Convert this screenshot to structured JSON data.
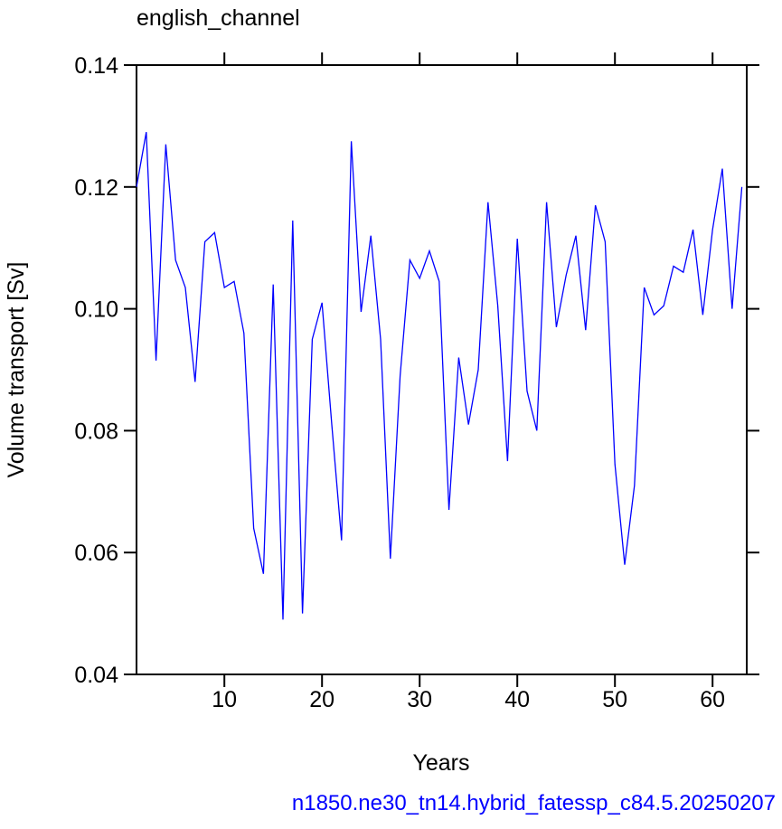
{
  "chart_data": {
    "type": "line",
    "title": "english_channel",
    "x_label": "Years",
    "y_label": "Volume transport [Sv]",
    "footer": "n1850.ne30_tn14.hybrid_fatessp_c84.5.20250207",
    "x": [
      1,
      2,
      3,
      4,
      5,
      6,
      7,
      8,
      9,
      10,
      11,
      12,
      13,
      14,
      15,
      16,
      17,
      18,
      19,
      20,
      21,
      22,
      23,
      24,
      25,
      26,
      27,
      28,
      29,
      30,
      31,
      32,
      33,
      34,
      35,
      36,
      37,
      38,
      39,
      40,
      41,
      42,
      43,
      44,
      45,
      46,
      47,
      48,
      49,
      50,
      51,
      52,
      53,
      54,
      55,
      56,
      57,
      58,
      59,
      60,
      61,
      62,
      63
    ],
    "series": [
      {
        "color": "#0000ff",
        "values": [
          0.12,
          0.129,
          0.0915,
          0.127,
          0.108,
          0.1035,
          0.088,
          0.111,
          0.1125,
          0.1035,
          0.1045,
          0.096,
          0.064,
          0.0565,
          0.104,
          0.049,
          0.1145,
          0.05,
          0.095,
          0.101,
          0.081,
          0.062,
          0.1275,
          0.0995,
          0.112,
          0.095,
          0.059,
          0.089,
          0.108,
          0.105,
          0.1095,
          0.1045,
          0.067,
          0.092,
          0.081,
          0.09,
          0.1175,
          0.1005,
          0.075,
          0.1115,
          0.0865,
          0.08,
          0.1175,
          0.097,
          0.1055,
          0.112,
          0.0965,
          0.117,
          0.111,
          0.0745,
          0.058,
          0.071,
          0.1035,
          0.099,
          0.1005,
          0.107,
          0.106,
          0.113,
          0.099,
          0.113,
          0.123,
          0.1,
          0.12
        ]
      }
    ],
    "xlim": [
      1,
      63.5
    ],
    "xticks": [
      10,
      20,
      30,
      40,
      50,
      60
    ],
    "ylim": [
      0.04,
      0.14
    ],
    "yticks": [
      0.04,
      0.06,
      0.08,
      {
        "value": 0.1,
        "label": "0.10"
      },
      0.12,
      0.14
    ]
  }
}
